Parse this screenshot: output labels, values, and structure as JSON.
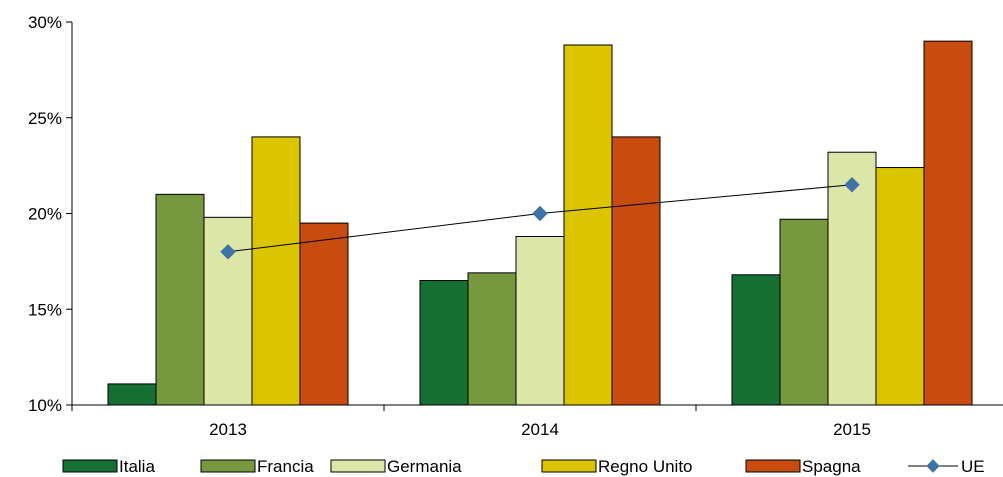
{
  "chart_data": {
    "type": "bar",
    "categories": [
      "2013",
      "2014",
      "2015"
    ],
    "ylim": [
      0.1,
      0.3
    ],
    "yticks": [
      "10%",
      "15%",
      "20%",
      "25%",
      "30%"
    ],
    "yticks_values": [
      0.1,
      0.15,
      0.2,
      0.25,
      0.3
    ],
    "grid": false,
    "legend_position": "bottom",
    "series": [
      {
        "name": "Italia",
        "color": "#166f33",
        "values": [
          0.111,
          0.165,
          0.168
        ]
      },
      {
        "name": "Francia",
        "color": "#77983e",
        "values": [
          0.21,
          0.169,
          0.197
        ]
      },
      {
        "name": "Germania",
        "color": "#dce6a8",
        "values": [
          0.198,
          0.188,
          0.232
        ]
      },
      {
        "name": "Regno Unito",
        "color": "#dbc500",
        "values": [
          0.24,
          0.288,
          0.224
        ]
      },
      {
        "name": "Spagna",
        "color": "#c84b10",
        "values": [
          0.195,
          0.24,
          0.29
        ]
      }
    ],
    "line_series": {
      "name": "UE",
      "color": "#3f73a8",
      "values": [
        0.18,
        0.2,
        0.215
      ]
    }
  }
}
